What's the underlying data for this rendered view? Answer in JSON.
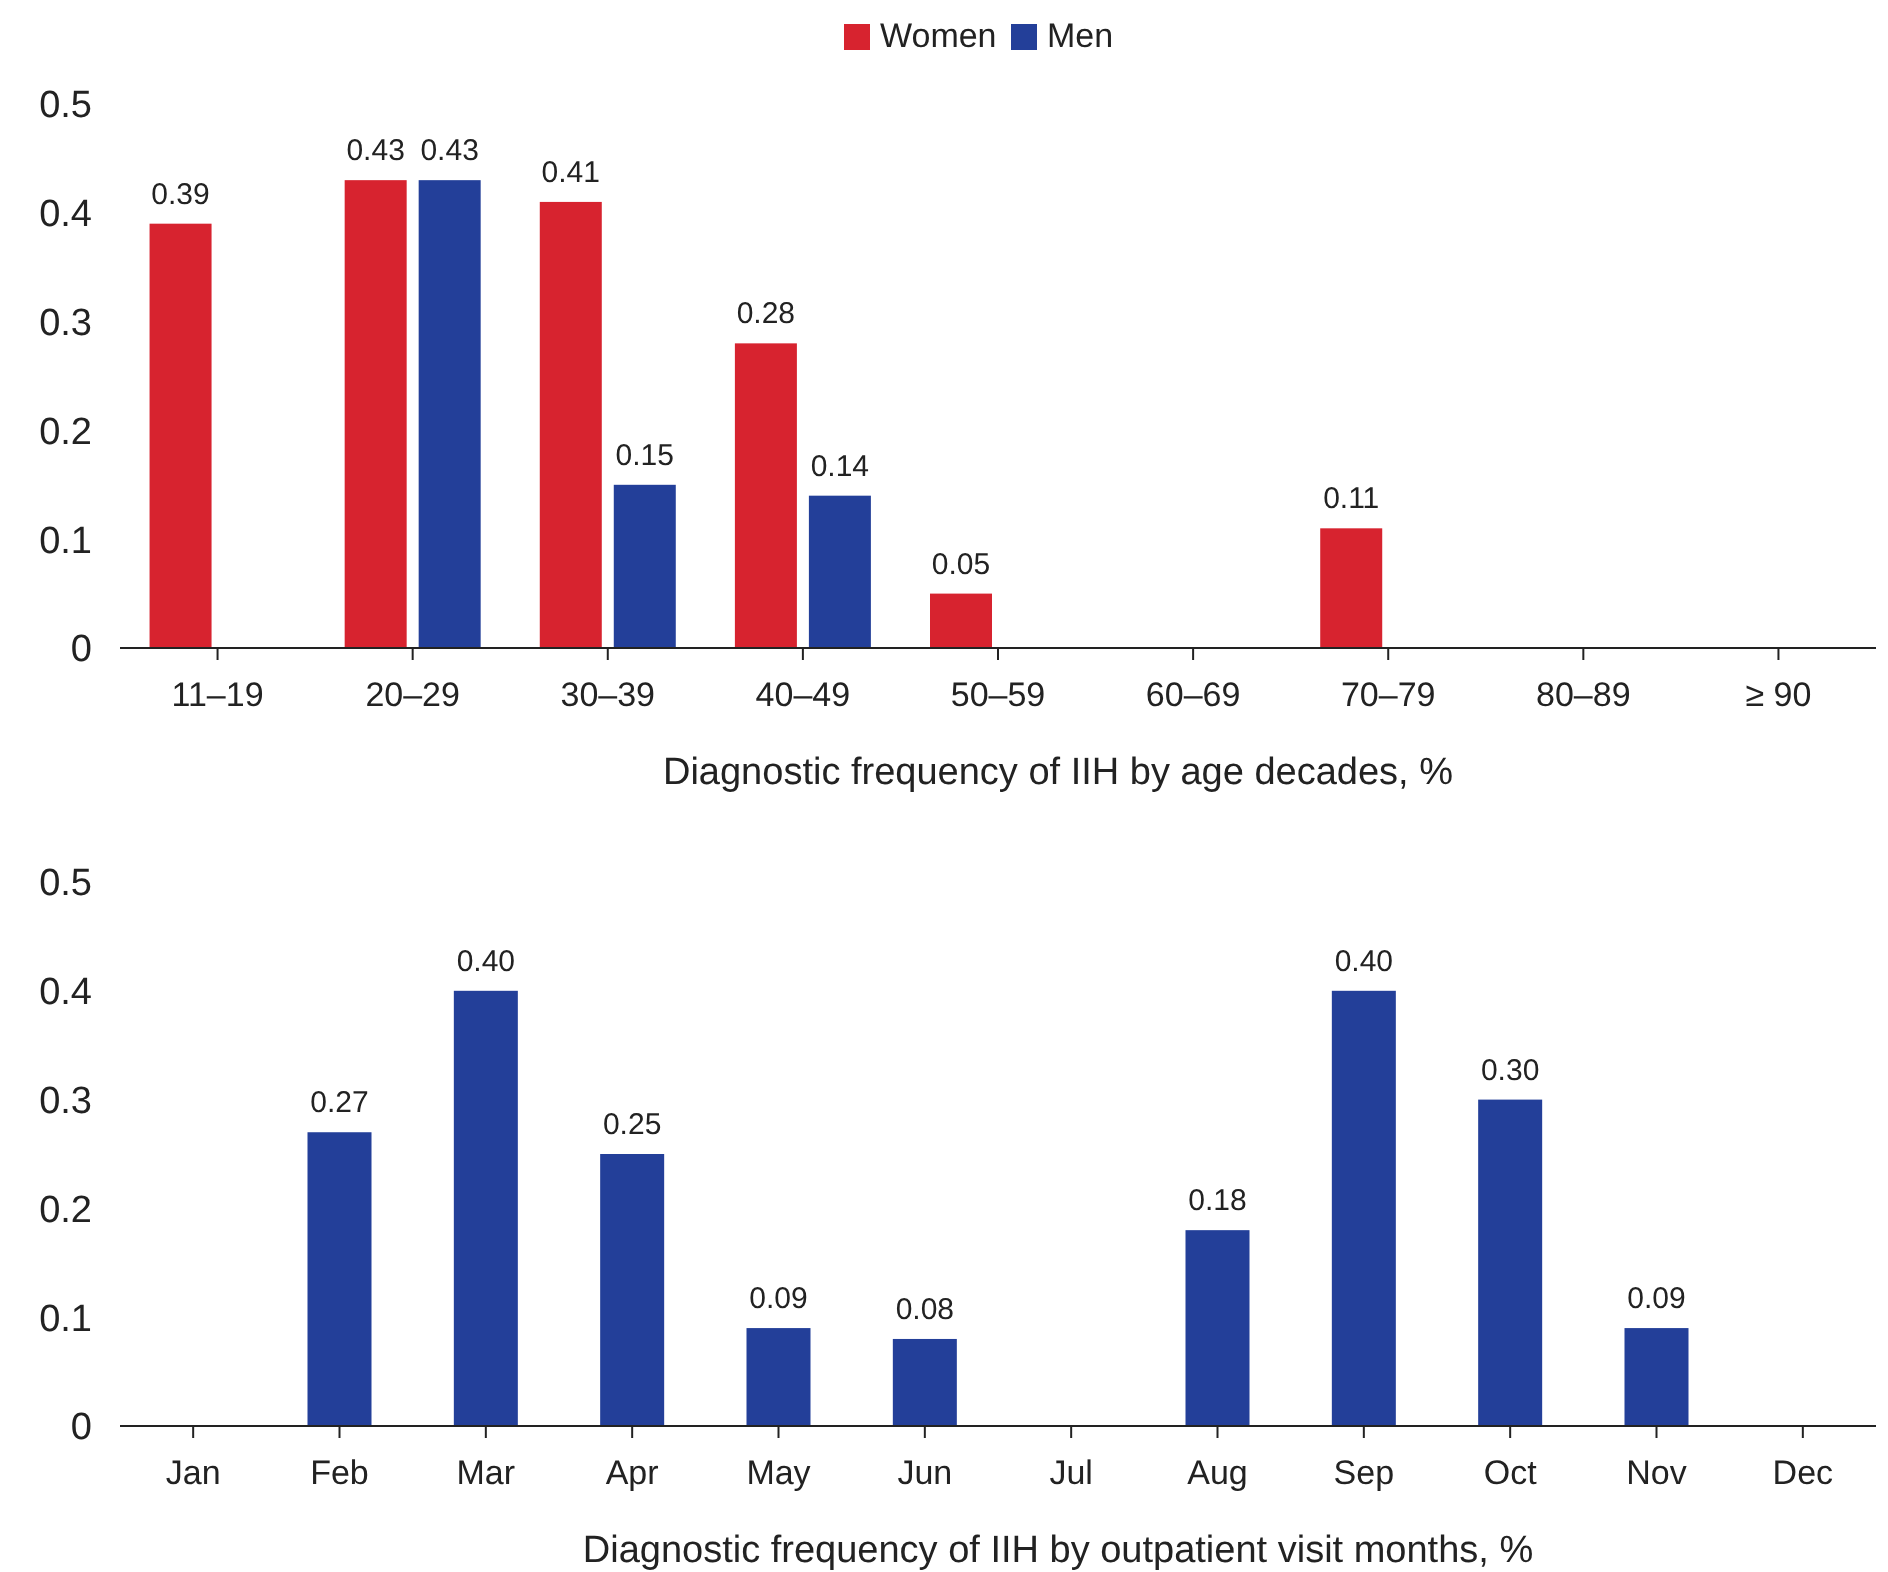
{
  "chart_data": [
    {
      "type": "bar",
      "xlabel": "Diagnostic frequency of IIH by age decades, %",
      "categories": [
        "11–19",
        "20–29",
        "30–39",
        "40–49",
        "50–59",
        "60–69",
        "70–79",
        "80–89",
        "≥ 90"
      ],
      "series": [
        {
          "name": "Women",
          "color": "#d7232f",
          "values": [
            0.39,
            0.43,
            0.41,
            0.28,
            0.05,
            null,
            0.11,
            null,
            null
          ]
        },
        {
          "name": "Men",
          "color": "#233f99",
          "values": [
            null,
            0.43,
            0.15,
            0.14,
            null,
            null,
            null,
            null,
            null
          ]
        }
      ],
      "ylim": [
        0,
        0.5
      ],
      "yticks": [
        0,
        0.1,
        0.2,
        0.3,
        0.4,
        0.5
      ],
      "data_labels": true,
      "legend": "top",
      "grid": false
    },
    {
      "type": "bar",
      "xlabel": "Diagnostic frequency of IIH by outpatient visit months, %",
      "categories": [
        "Jan",
        "Feb",
        "Mar",
        "Apr",
        "May",
        "Jun",
        "Jul",
        "Aug",
        "Sep",
        "Oct",
        "Nov",
        "Dec"
      ],
      "values": [
        null,
        0.27,
        0.4,
        0.25,
        0.09,
        0.08,
        null,
        0.18,
        0.4,
        0.3,
        0.09,
        null
      ],
      "value_labels": [
        null,
        "0.27",
        "0.40",
        "0.25",
        "0.09",
        "0.08",
        null,
        "0.18",
        "0.40",
        "0.30",
        "0.09",
        null
      ],
      "color": "#233f99",
      "ylim": [
        0,
        0.5
      ],
      "yticks": [
        0,
        0.1,
        0.2,
        0.3,
        0.4,
        0.5
      ],
      "grid": false
    }
  ]
}
